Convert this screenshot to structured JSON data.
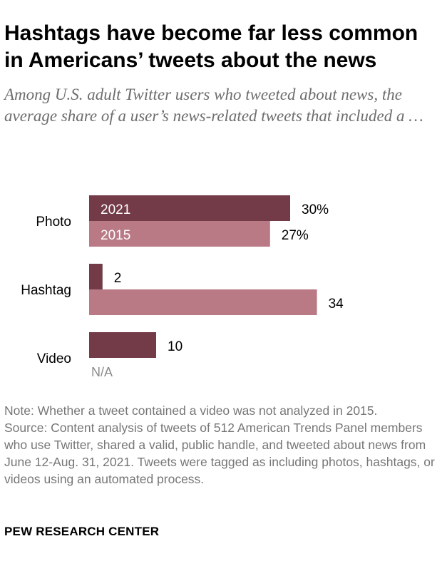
{
  "title": "Hashtags have become far less common in Americans’ tweets about the news",
  "subtitle": "Among U.S. adult Twitter users who tweeted about news, the average share of a user’s news-related tweets that included a …",
  "note": "Note: Whether a tweet contained a video was not analyzed in 2015.",
  "source": "Source: Content analysis of tweets of 512 American Trends Panel members who use Twitter, shared a valid, public handle, and tweeted about news from June 12-Aug. 31, 2021. Tweets were tagged as including photos, hashtags, or videos using an automated process.",
  "brand": "PEW RESEARCH CENTER",
  "colors": {
    "2021": "#733a48",
    "2015": "#b97a86",
    "in_bar_label": "#ffffff",
    "missing_label": "#8a8a8a"
  },
  "chart_data": {
    "type": "bar",
    "orientation": "horizontal",
    "categories": [
      "Photo",
      "Hashtag",
      "Video"
    ],
    "series": [
      {
        "name": "2021",
        "values": [
          30,
          2,
          10
        ],
        "labels": [
          "30%",
          "2",
          "10"
        ]
      },
      {
        "name": "2015",
        "values": [
          27,
          34,
          null
        ],
        "labels": [
          "27%",
          "34",
          "N/A"
        ]
      }
    ],
    "series_labels_in_bar": "Photo",
    "xlim": [
      0,
      34
    ],
    "grid": false,
    "legend": "none (series names printed inside the Photo bars)"
  }
}
